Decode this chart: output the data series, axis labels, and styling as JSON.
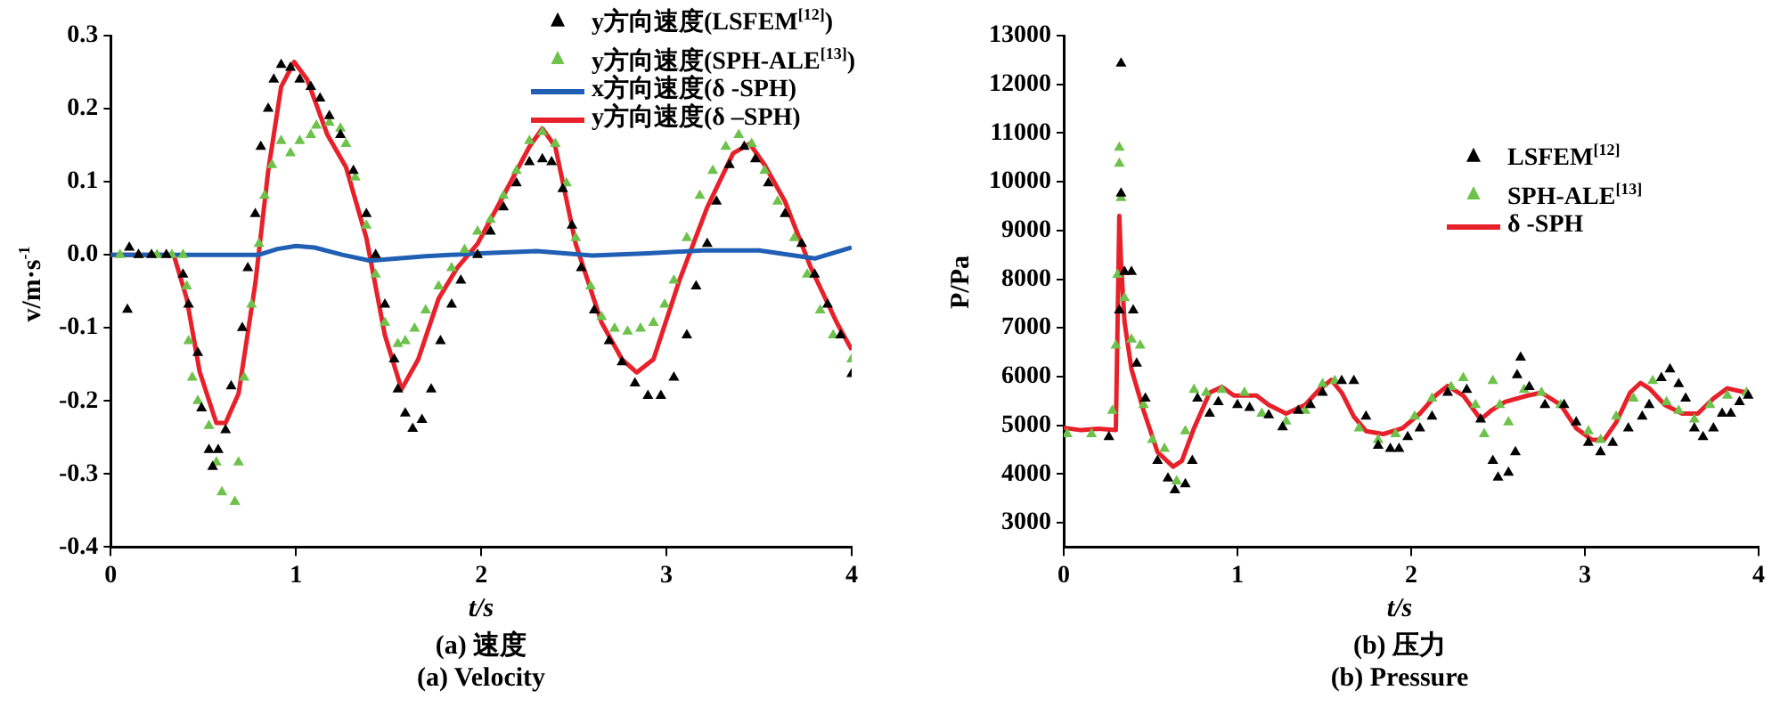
{
  "chart_data": [
    {
      "type": "scatter",
      "xlabel": "t/s",
      "ylabel": "v/m·s$^{-1}$",
      "xlim": [
        0,
        4
      ],
      "xticks": [
        0,
        1,
        2,
        3,
        4
      ],
      "ylim": [
        -0.4,
        0.3
      ],
      "yticks": [
        -0.4,
        -0.3,
        -0.2,
        -0.1,
        {
          "value": 0,
          "label": "0.0"
        },
        0.1,
        0.2,
        0.3
      ],
      "grid": false,
      "legend": "top right",
      "annotations": [
        "(a) 速度",
        "(a) Velocity"
      ],
      "series": [
        {
          "type": "scatter",
          "marker": "triangle",
          "name": "y方向速度(LSFEM$^{[12]}$)",
          "color": "#000000",
          "x": [
            0.09,
            0.1,
            0.15,
            0.22,
            0.3,
            0.39,
            0.42,
            0.47,
            0.49,
            0.53,
            0.55,
            0.58,
            0.62,
            0.65,
            0.71,
            0.74,
            0.78,
            0.81,
            0.85,
            0.88,
            0.92,
            0.97,
            1.02,
            1.08,
            1.13,
            1.18,
            1.24,
            1.31,
            1.38,
            1.43,
            1.48,
            1.53,
            1.55,
            1.59,
            1.63,
            1.68,
            1.73,
            1.78,
            1.84,
            1.89,
            1.98,
            2.05,
            2.12,
            2.19,
            2.26,
            2.33,
            2.38,
            2.44,
            2.49,
            2.54,
            2.61,
            2.69,
            2.76,
            2.83,
            2.9,
            2.97,
            3.04,
            3.11,
            3.16,
            3.22,
            3.27,
            3.34,
            3.42,
            3.48,
            3.55,
            3.64,
            3.73,
            3.8,
            3.87,
            3.94,
            4.0
          ],
          "values": [
            -0.075,
            0.01,
            0,
            0,
            0,
            -0.027,
            -0.068,
            -0.134,
            -0.21,
            -0.267,
            -0.29,
            -0.267,
            -0.24,
            -0.18,
            -0.1,
            -0.018,
            0.056,
            0.148,
            0.2,
            0.24,
            0.26,
            0.256,
            0.24,
            0.23,
            0.214,
            0.19,
            0.164,
            0.115,
            0.056,
            0,
            -0.068,
            -0.143,
            -0.184,
            -0.217,
            -0.238,
            -0.226,
            -0.184,
            -0.118,
            -0.068,
            -0.035,
            0,
            0.032,
            0.065,
            0.098,
            0.127,
            0.131,
            0.127,
            0.09,
            0.04,
            -0.018,
            -0.076,
            -0.118,
            -0.147,
            -0.176,
            -0.193,
            -0.193,
            -0.168,
            -0.11,
            -0.043,
            0.015,
            0.073,
            0.123,
            0.148,
            0.131,
            0.098,
            0.056,
            0.015,
            -0.027,
            -0.068,
            -0.11,
            -0.163
          ]
        },
        {
          "type": "scatter",
          "marker": "triangle",
          "name": "y方向速度(SPH-ALE$^{[13]}$)",
          "color": "#6cc24a",
          "x": [
            0.05,
            0.15,
            0.25,
            0.33,
            0.39,
            0.41,
            0.42,
            0.44,
            0.47,
            0.53,
            0.57,
            0.6,
            0.67,
            0.69,
            0.72,
            0.76,
            0.8,
            0.83,
            0.87,
            0.92,
            0.97,
            1.02,
            1.08,
            1.11,
            1.18,
            1.24,
            1.27,
            1.32,
            1.38,
            1.43,
            1.48,
            1.55,
            1.59,
            1.64,
            1.7,
            1.77,
            1.84,
            1.91,
            1.98,
            2.05,
            2.12,
            2.19,
            2.26,
            2.33,
            2.4,
            2.46,
            2.51,
            2.59,
            2.65,
            2.72,
            2.79,
            2.86,
            2.93,
            2.99,
            3.04,
            3.11,
            3.18,
            3.25,
            3.32,
            3.39,
            3.46,
            3.53,
            3.6,
            3.69,
            3.76,
            3.83,
            3.9,
            4.0
          ],
          "values": [
            0,
            0,
            0,
            0,
            0,
            -0.043,
            -0.118,
            -0.168,
            -0.2,
            -0.234,
            -0.284,
            -0.325,
            -0.338,
            -0.284,
            -0.168,
            -0.068,
            0.015,
            0.081,
            0.123,
            0.156,
            0.139,
            0.156,
            0.164,
            0.177,
            0.181,
            0.173,
            0.152,
            0.106,
            0.04,
            -0.027,
            -0.093,
            -0.122,
            -0.118,
            -0.101,
            -0.076,
            -0.043,
            -0.018,
            0.007,
            0.032,
            0.048,
            0.081,
            0.115,
            0.156,
            0.168,
            0.152,
            0.098,
            0.023,
            -0.043,
            -0.085,
            -0.101,
            -0.105,
            -0.101,
            -0.093,
            -0.068,
            -0.035,
            0.023,
            0.081,
            0.115,
            0.148,
            0.164,
            0.152,
            0.115,
            0.073,
            0.023,
            -0.027,
            -0.076,
            -0.11,
            -0.143
          ]
        },
        {
          "type": "line",
          "marker": "none",
          "line_style": "solid",
          "name": "x方向速度(δ -SPH)",
          "color": "#1f5fb4",
          "x": [
            0,
            0.8,
            0.9,
            1.0,
            1.1,
            1.25,
            1.4,
            1.7,
            2.0,
            2.3,
            2.6,
            2.9,
            3.2,
            3.5,
            3.8,
            4.0
          ],
          "values": [
            0,
            0,
            0.008,
            0.012,
            0.01,
            0,
            -0.008,
            -0.002,
            0.002,
            0.005,
            -0.001,
            0.002,
            0.006,
            0.006,
            -0.005,
            0.01
          ]
        },
        {
          "type": "line",
          "marker": "none",
          "line_style": "solid",
          "name": "y方向速度(δ –SPH)",
          "color": "#e8202a",
          "x": [
            0,
            0.34,
            0.41,
            0.48,
            0.57,
            0.62,
            0.69,
            0.78,
            0.85,
            0.92,
            0.99,
            1.06,
            1.17,
            1.27,
            1.38,
            1.48,
            1.57,
            1.66,
            1.77,
            1.87,
            1.98,
            2.12,
            2.26,
            2.33,
            2.4,
            2.51,
            2.65,
            2.76,
            2.84,
            2.93,
            3.07,
            3.22,
            3.36,
            3.45,
            3.53,
            3.64,
            3.78,
            3.92,
            4.0
          ],
          "values": [
            0,
            0,
            -0.06,
            -0.16,
            -0.23,
            -0.23,
            -0.19,
            -0.04,
            0.115,
            0.23,
            0.264,
            0.24,
            0.164,
            0.12,
            0.023,
            -0.11,
            -0.184,
            -0.143,
            -0.06,
            -0.018,
            0.015,
            0.081,
            0.148,
            0.173,
            0.148,
            0.015,
            -0.093,
            -0.143,
            -0.161,
            -0.143,
            -0.035,
            0.065,
            0.139,
            0.152,
            0.123,
            0.073,
            -0.018,
            -0.093,
            -0.13
          ]
        }
      ]
    },
    {
      "type": "scatter",
      "xlabel": "t/s",
      "ylabel": "P/Pa",
      "xlim": [
        0,
        4
      ],
      "xticks": [
        0,
        1,
        2,
        3,
        4
      ],
      "ylim": [
        2500,
        13000
      ],
      "yticks": [
        3000,
        4000,
        5000,
        6000,
        7000,
        8000,
        9000,
        10000,
        11000,
        12000,
        13000
      ],
      "grid": false,
      "legend": "top right",
      "annotations": [
        "(b) 压力",
        "(b) Pressure"
      ],
      "series": [
        {
          "type": "scatter",
          "marker": "triangle",
          "name": "LSFEM$^{[12]}$",
          "color": "#000000",
          "x": [
            0.26,
            0.32,
            0.33,
            0.33,
            0.35,
            0.39,
            0.4,
            0.42,
            0.47,
            0.54,
            0.6,
            0.64,
            0.7,
            0.74,
            0.77,
            0.84,
            0.89,
            1.0,
            1.07,
            1.18,
            1.26,
            1.35,
            1.42,
            1.49,
            1.6,
            1.67,
            1.74,
            1.81,
            1.88,
            1.93,
            1.98,
            2.05,
            2.12,
            2.21,
            2.32,
            2.4,
            2.47,
            2.5,
            2.56,
            2.6,
            2.61,
            2.63,
            2.68,
            2.77,
            2.88,
            2.95,
            3.02,
            3.09,
            3.16,
            3.25,
            3.33,
            3.37,
            3.44,
            3.49,
            3.54,
            3.58,
            3.63,
            3.68,
            3.74,
            3.79,
            3.84,
            3.89,
            3.94
          ],
          "values": [
            4760,
            7360,
            12430,
            9760,
            8150,
            8150,
            7360,
            6270,
            5550,
            4270,
            3910,
            3670,
            3790,
            4270,
            5550,
            5240,
            5480,
            5420,
            5360,
            5210,
            4960,
            5300,
            5420,
            5670,
            5910,
            5910,
            5180,
            4580,
            4520,
            4520,
            4760,
            4940,
            5180,
            5670,
            5730,
            5120,
            4270,
            3930,
            4030,
            4450,
            6030,
            6390,
            5790,
            5420,
            5420,
            5060,
            4640,
            4450,
            4640,
            4940,
            5180,
            5420,
            5970,
            6150,
            5850,
            5550,
            4940,
            4760,
            4940,
            5240,
            5240,
            5480,
            5610
          ]
        },
        {
          "type": "scatter",
          "marker": "triangle",
          "name": "SPH-ALE$^{[13]}$",
          "color": "#6cc24a",
          "x": [
            0.02,
            0.16,
            0.28,
            0.3,
            0.31,
            0.32,
            0.32,
            0.33,
            0.35,
            0.39,
            0.44,
            0.46,
            0.51,
            0.58,
            0.65,
            0.7,
            0.75,
            0.82,
            0.91,
            1.04,
            1.14,
            1.28,
            1.39,
            1.49,
            1.56,
            1.7,
            1.81,
            1.91,
            2.02,
            2.12,
            2.23,
            2.3,
            2.37,
            2.42,
            2.47,
            2.51,
            2.56,
            2.65,
            2.75,
            2.86,
            3.02,
            3.09,
            3.18,
            3.28,
            3.39,
            3.47,
            3.54,
            3.63,
            3.72,
            3.82,
            3.93
          ],
          "values": [
            4820,
            4820,
            5300,
            6640,
            8090,
            10700,
            10370,
            9670,
            7610,
            6760,
            6640,
            5420,
            4700,
            4520,
            3850,
            4880,
            5730,
            5670,
            5730,
            5670,
            5240,
            5080,
            5300,
            5850,
            5910,
            4940,
            4700,
            4820,
            5180,
            5550,
            5790,
            5970,
            5420,
            4820,
            5910,
            5420,
            5060,
            5730,
            5670,
            5420,
            4880,
            4700,
            5180,
            5550,
            5910,
            5480,
            5300,
            5120,
            5420,
            5610,
            5670
          ]
        },
        {
          "type": "line",
          "marker": "none",
          "line_style": "solid",
          "name": "δ -SPH",
          "color": "#e8202a",
          "x": [
            0,
            0.1,
            0.2,
            0.3,
            0.32,
            0.33,
            0.35,
            0.39,
            0.46,
            0.54,
            0.63,
            0.68,
            0.75,
            0.84,
            0.91,
            0.98,
            1.11,
            1.18,
            1.28,
            1.39,
            1.47,
            1.54,
            1.6,
            1.67,
            1.74,
            1.84,
            1.95,
            2.05,
            2.14,
            2.21,
            2.3,
            2.4,
            2.46,
            2.54,
            2.67,
            2.75,
            2.86,
            2.95,
            3.04,
            3.11,
            3.18,
            3.26,
            3.32,
            3.37,
            3.46,
            3.56,
            3.65,
            3.74,
            3.82,
            3.93,
            3.95
          ],
          "values": [
            4950,
            4900,
            4930,
            4900,
            9300,
            8330,
            7120,
            6150,
            5300,
            4450,
            4150,
            4270,
            4940,
            5670,
            5790,
            5610,
            5610,
            5420,
            5240,
            5420,
            5730,
            5930,
            5670,
            5180,
            4880,
            4820,
            4940,
            5240,
            5610,
            5810,
            5610,
            5120,
            5300,
            5480,
            5610,
            5670,
            5420,
            4940,
            4700,
            4700,
            5060,
            5670,
            5870,
            5760,
            5420,
            5240,
            5240,
            5550,
            5760,
            5670,
            5610
          ]
        }
      ]
    }
  ]
}
